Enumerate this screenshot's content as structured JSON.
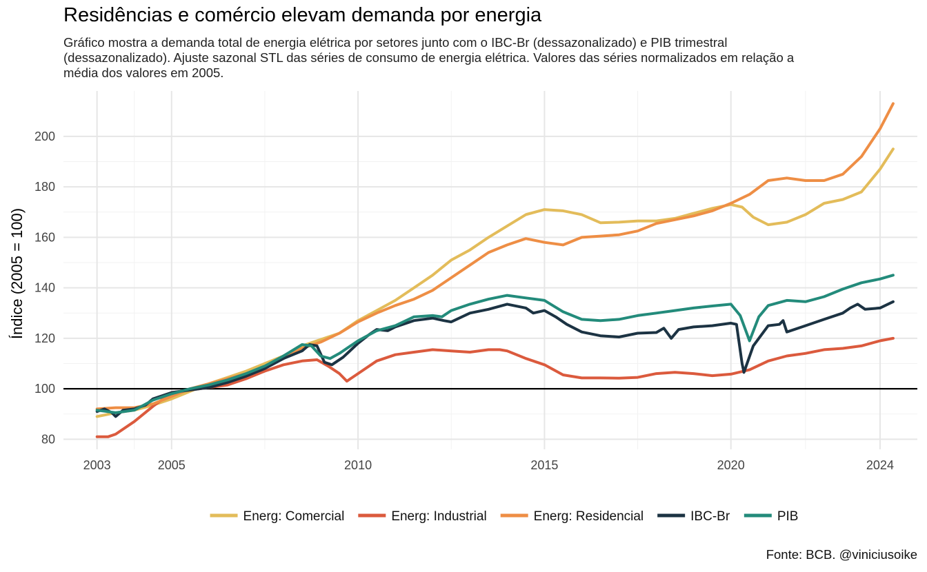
{
  "title": "Residências e comércio elevam demanda por energia",
  "subtitle": "Gráfico mostra a demanda total de energia elétrica por setores junto com o IBC-Br (dessazonalizado) e PIB trimestral (dessazonalizado). Ajuste sazonal STL das séries de consumo de energia elétrica. Valores das séries normalizados em relação a média dos valores em 2005.",
  "caption": "Fonte: BCB. @viniciusoike",
  "chart_data": {
    "type": "line",
    "xlabel": "",
    "ylabel": "Índice (2005 = 100)",
    "xlim": [
      2002.1,
      2025.0
    ],
    "ylim": [
      76,
      218
    ],
    "x_ticks": [
      2003,
      2005,
      2010,
      2015,
      2020,
      2024
    ],
    "y_ticks": [
      80,
      100,
      120,
      140,
      160,
      180,
      200
    ],
    "reference_line": 100,
    "grid": true,
    "legend_position": "bottom",
    "series": [
      {
        "name": "Energ: Comercial",
        "color": "#E3BC5A",
        "points": [
          [
            2003.0,
            89
          ],
          [
            2003.5,
            90.5
          ],
          [
            2004.0,
            91.5
          ],
          [
            2004.5,
            93.5
          ],
          [
            2005.0,
            96
          ],
          [
            2005.5,
            99
          ],
          [
            2006.0,
            102
          ],
          [
            2006.5,
            104.5
          ],
          [
            2007.0,
            107
          ],
          [
            2007.5,
            110
          ],
          [
            2008.0,
            113
          ],
          [
            2008.5,
            117
          ],
          [
            2009.0,
            119.5
          ],
          [
            2009.5,
            122
          ],
          [
            2010.0,
            127
          ],
          [
            2010.5,
            131
          ],
          [
            2011.0,
            135
          ],
          [
            2011.5,
            140
          ],
          [
            2012.0,
            145
          ],
          [
            2012.5,
            151
          ],
          [
            2013.0,
            155
          ],
          [
            2013.5,
            160
          ],
          [
            2014.0,
            164.5
          ],
          [
            2014.5,
            169
          ],
          [
            2015.0,
            171
          ],
          [
            2015.5,
            170.5
          ],
          [
            2016.0,
            169
          ],
          [
            2016.5,
            165.8
          ],
          [
            2017.0,
            166
          ],
          [
            2017.5,
            166.5
          ],
          [
            2018.0,
            166.5
          ],
          [
            2018.5,
            167.5
          ],
          [
            2019.0,
            169.5
          ],
          [
            2019.5,
            171.5
          ],
          [
            2020.0,
            173
          ],
          [
            2020.3,
            172
          ],
          [
            2020.6,
            168
          ],
          [
            2021.0,
            165
          ],
          [
            2021.5,
            166
          ],
          [
            2022.0,
            169
          ],
          [
            2022.5,
            173.5
          ],
          [
            2023.0,
            175
          ],
          [
            2023.5,
            178
          ],
          [
            2024.0,
            187
          ],
          [
            2024.35,
            195
          ]
        ]
      },
      {
        "name": "Energ: Industrial",
        "color": "#DB5A3D",
        "points": [
          [
            2003.0,
            81
          ],
          [
            2003.3,
            81
          ],
          [
            2003.5,
            82
          ],
          [
            2004.0,
            87
          ],
          [
            2004.5,
            93
          ],
          [
            2005.0,
            98.5
          ],
          [
            2005.5,
            99.5
          ],
          [
            2006.0,
            100.5
          ],
          [
            2006.5,
            101.5
          ],
          [
            2007.0,
            104
          ],
          [
            2007.5,
            107
          ],
          [
            2008.0,
            109.5
          ],
          [
            2008.5,
            111
          ],
          [
            2008.9,
            111.5
          ],
          [
            2009.2,
            109
          ],
          [
            2009.5,
            106
          ],
          [
            2009.7,
            103
          ],
          [
            2010.0,
            106
          ],
          [
            2010.5,
            111
          ],
          [
            2011.0,
            113.5
          ],
          [
            2011.5,
            114.5
          ],
          [
            2012.0,
            115.5
          ],
          [
            2012.5,
            115
          ],
          [
            2013.0,
            114.5
          ],
          [
            2013.5,
            115.5
          ],
          [
            2013.8,
            115.5
          ],
          [
            2014.0,
            115
          ],
          [
            2014.5,
            112
          ],
          [
            2015.0,
            109.5
          ],
          [
            2015.5,
            105.5
          ],
          [
            2016.0,
            104.3
          ],
          [
            2016.5,
            104.3
          ],
          [
            2017.0,
            104.2
          ],
          [
            2017.5,
            104.5
          ],
          [
            2018.0,
            106
          ],
          [
            2018.5,
            106.5
          ],
          [
            2019.0,
            106
          ],
          [
            2019.5,
            105.2
          ],
          [
            2020.0,
            105.8
          ],
          [
            2020.5,
            107.5
          ],
          [
            2021.0,
            111
          ],
          [
            2021.5,
            113
          ],
          [
            2022.0,
            114
          ],
          [
            2022.5,
            115.5
          ],
          [
            2023.0,
            116
          ],
          [
            2023.5,
            117
          ],
          [
            2024.0,
            119
          ],
          [
            2024.35,
            120
          ]
        ]
      },
      {
        "name": "Energ: Residencial",
        "color": "#EE8E45",
        "points": [
          [
            2003.0,
            92
          ],
          [
            2003.5,
            92.5
          ],
          [
            2004.0,
            92.5
          ],
          [
            2004.5,
            94
          ],
          [
            2005.0,
            97
          ],
          [
            2005.5,
            100
          ],
          [
            2006.0,
            102
          ],
          [
            2006.5,
            104
          ],
          [
            2007.0,
            106
          ],
          [
            2007.5,
            108.5
          ],
          [
            2008.0,
            112
          ],
          [
            2008.5,
            116
          ],
          [
            2009.0,
            118.5
          ],
          [
            2009.5,
            122
          ],
          [
            2010.0,
            126.5
          ],
          [
            2010.5,
            130
          ],
          [
            2011.0,
            133
          ],
          [
            2011.5,
            135.5
          ],
          [
            2012.0,
            139
          ],
          [
            2012.5,
            144
          ],
          [
            2013.0,
            149
          ],
          [
            2013.5,
            154
          ],
          [
            2014.0,
            157
          ],
          [
            2014.5,
            159.5
          ],
          [
            2015.0,
            158
          ],
          [
            2015.5,
            157
          ],
          [
            2016.0,
            160
          ],
          [
            2016.5,
            160.5
          ],
          [
            2017.0,
            161
          ],
          [
            2017.5,
            162.5
          ],
          [
            2018.0,
            165.5
          ],
          [
            2018.5,
            167
          ],
          [
            2019.0,
            168.5
          ],
          [
            2019.5,
            170.5
          ],
          [
            2020.0,
            173.5
          ],
          [
            2020.5,
            177
          ],
          [
            2021.0,
            182.5
          ],
          [
            2021.5,
            183.5
          ],
          [
            2022.0,
            182.5
          ],
          [
            2022.5,
            182.5
          ],
          [
            2023.0,
            185
          ],
          [
            2023.5,
            192
          ],
          [
            2024.0,
            203
          ],
          [
            2024.35,
            213
          ]
        ]
      },
      {
        "name": "IBC-Br",
        "color": "#1C3343",
        "points": [
          [
            2003.0,
            91
          ],
          [
            2003.2,
            92
          ],
          [
            2003.4,
            90.5
          ],
          [
            2003.5,
            89
          ],
          [
            2003.7,
            91.5
          ],
          [
            2004.0,
            92
          ],
          [
            2004.3,
            93.5
          ],
          [
            2004.5,
            96
          ],
          [
            2005.0,
            98.5
          ],
          [
            2005.5,
            99.5
          ],
          [
            2006.0,
            100.5
          ],
          [
            2006.5,
            102.5
          ],
          [
            2007.0,
            105
          ],
          [
            2007.5,
            108
          ],
          [
            2008.0,
            112
          ],
          [
            2008.5,
            115
          ],
          [
            2008.7,
            117.5
          ],
          [
            2008.9,
            117
          ],
          [
            2009.1,
            110.5
          ],
          [
            2009.3,
            109.5
          ],
          [
            2009.6,
            112.5
          ],
          [
            2010.0,
            118
          ],
          [
            2010.3,
            121.5
          ],
          [
            2010.5,
            123.5
          ],
          [
            2010.8,
            123
          ],
          [
            2011.0,
            124.5
          ],
          [
            2011.5,
            127
          ],
          [
            2012.0,
            128
          ],
          [
            2012.3,
            127
          ],
          [
            2012.5,
            126.5
          ],
          [
            2013.0,
            130
          ],
          [
            2013.5,
            131.5
          ],
          [
            2014.0,
            133.5
          ],
          [
            2014.5,
            132
          ],
          [
            2014.7,
            130
          ],
          [
            2015.0,
            131
          ],
          [
            2015.3,
            128.5
          ],
          [
            2015.6,
            125.5
          ],
          [
            2016.0,
            122.5
          ],
          [
            2016.5,
            121
          ],
          [
            2017.0,
            120.5
          ],
          [
            2017.5,
            122
          ],
          [
            2018.0,
            122.3
          ],
          [
            2018.2,
            124
          ],
          [
            2018.4,
            120
          ],
          [
            2018.6,
            123.5
          ],
          [
            2019.0,
            124.5
          ],
          [
            2019.5,
            125
          ],
          [
            2020.0,
            126
          ],
          [
            2020.15,
            125.5
          ],
          [
            2020.3,
            110
          ],
          [
            2020.35,
            106.5
          ],
          [
            2020.6,
            117
          ],
          [
            2021.0,
            125
          ],
          [
            2021.3,
            125.5
          ],
          [
            2021.4,
            127
          ],
          [
            2021.5,
            122.5
          ],
          [
            2022.0,
            125
          ],
          [
            2022.5,
            127.5
          ],
          [
            2023.0,
            130
          ],
          [
            2023.2,
            132
          ],
          [
            2023.4,
            133.5
          ],
          [
            2023.6,
            131.5
          ],
          [
            2024.0,
            132
          ],
          [
            2024.35,
            134.5
          ]
        ]
      },
      {
        "name": "PIB",
        "color": "#238B7B",
        "points": [
          [
            2003.0,
            91.5
          ],
          [
            2003.5,
            90.5
          ],
          [
            2004.0,
            91.5
          ],
          [
            2004.5,
            95.5
          ],
          [
            2005.0,
            98
          ],
          [
            2005.5,
            100
          ],
          [
            2006.0,
            101.5
          ],
          [
            2006.5,
            103.5
          ],
          [
            2007.0,
            106
          ],
          [
            2007.5,
            109
          ],
          [
            2008.0,
            113
          ],
          [
            2008.5,
            117.5
          ],
          [
            2008.75,
            117
          ],
          [
            2009.0,
            113
          ],
          [
            2009.25,
            112
          ],
          [
            2009.5,
            114
          ],
          [
            2010.0,
            119
          ],
          [
            2010.5,
            123
          ],
          [
            2011.0,
            125
          ],
          [
            2011.5,
            128.5
          ],
          [
            2012.0,
            129
          ],
          [
            2012.25,
            128.5
          ],
          [
            2012.5,
            131
          ],
          [
            2013.0,
            133.5
          ],
          [
            2013.5,
            135.5
          ],
          [
            2014.0,
            137
          ],
          [
            2014.5,
            136
          ],
          [
            2015.0,
            135
          ],
          [
            2015.5,
            130.5
          ],
          [
            2016.0,
            127.5
          ],
          [
            2016.5,
            127
          ],
          [
            2017.0,
            127.5
          ],
          [
            2017.5,
            129
          ],
          [
            2018.0,
            130
          ],
          [
            2018.5,
            131
          ],
          [
            2019.0,
            132
          ],
          [
            2019.5,
            132.8
          ],
          [
            2020.0,
            133.5
          ],
          [
            2020.25,
            129
          ],
          [
            2020.5,
            119
          ],
          [
            2020.75,
            128.5
          ],
          [
            2021.0,
            133
          ],
          [
            2021.5,
            135
          ],
          [
            2022.0,
            134.5
          ],
          [
            2022.5,
            136.5
          ],
          [
            2023.0,
            139.5
          ],
          [
            2023.5,
            142
          ],
          [
            2024.0,
            143.5
          ],
          [
            2024.35,
            145
          ]
        ]
      }
    ]
  }
}
